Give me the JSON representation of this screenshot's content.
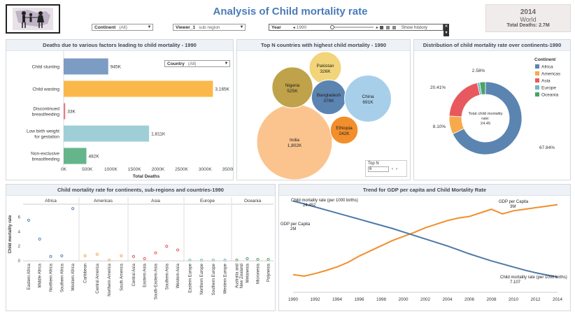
{
  "header": {
    "title": "Analysis of Child mortality rate",
    "kpi": {
      "year": "2014",
      "region": "World",
      "total": "Total Deaths: 2.7M"
    }
  },
  "filters": {
    "continent": {
      "label": "Continent",
      "value": "(All)"
    },
    "viewer": {
      "label": "Viewer_1",
      "value": "sub region"
    },
    "year": {
      "label": "Year",
      "value": "1990",
      "history": "Show history"
    },
    "country": {
      "label": "Country",
      "value": "(All)"
    },
    "topn": {
      "label": "Top N",
      "value": "6"
    }
  },
  "colors": {
    "africa": "#5b84b1",
    "americas": "#f8a94c",
    "asia": "#e7595e",
    "europe": "#6fb9c4",
    "oceania": "#4aa36a",
    "gdp": "#f28e2b",
    "cm": "#4e79a7"
  },
  "panels": {
    "deaths": {
      "title": "Deaths due to various factors leading to child mortality - 1990",
      "xlabel": "Total Deaths",
      "ticks": [
        "0K",
        "500K",
        "1000K",
        "1500K",
        "2000K",
        "2500K",
        "3000K",
        "3500K"
      ],
      "max": 3500,
      "bars": [
        {
          "label": "Child stunting",
          "value": 945,
          "text": "945K",
          "color": "#7c9cc4"
        },
        {
          "label": "Child wasting",
          "value": 3165,
          "text": "3,165K",
          "color": "#fbb84a"
        },
        {
          "label": "Discontinued breastfeeding",
          "value": 33,
          "text": "33K",
          "color": "#e97b82"
        },
        {
          "label": "Low birth weight for gestation",
          "value": 1811,
          "text": "1,811K",
          "color": "#9fcfd6"
        },
        {
          "label": "Non-exclusive breastfeeding",
          "value": 482,
          "text": "482K",
          "color": "#64b68a"
        }
      ]
    },
    "bubbles": {
      "title": "Top N countries with highest child mortality - 1990",
      "items": [
        {
          "name": "India",
          "value": "1,802K",
          "amount": 1802,
          "color": "#fbc48f"
        },
        {
          "name": "Nigeria",
          "value": "525K",
          "amount": 525,
          "color": "#bfa24a"
        },
        {
          "name": "Pakistan",
          "value": "326K",
          "amount": 326,
          "color": "#f2d57a"
        },
        {
          "name": "Bangladesh",
          "value": "376K",
          "amount": 376,
          "color": "#5b84b1"
        },
        {
          "name": "China",
          "value": "691K",
          "amount": 691,
          "color": "#a7cfea"
        },
        {
          "name": "Ethiopia",
          "value": "242K",
          "amount": 242,
          "color": "#f28e2b"
        }
      ]
    },
    "donut": {
      "title": "Distribution of child mortality rate over continents-1990",
      "legend_title": "Continent",
      "center": [
        "Total child mortality",
        "rate:",
        "24.45"
      ],
      "slices": [
        {
          "name": "Africa",
          "pct": 67.84,
          "label": "67.84%",
          "color": "#5b84b1"
        },
        {
          "name": "Americas",
          "pct": 8.1,
          "label": "8.10%",
          "color": "#f8a94c"
        },
        {
          "name": "Asia",
          "pct": 20.41,
          "label": "20.41%",
          "color": "#e7595e"
        },
        {
          "name": "Europe",
          "pct": 1.07,
          "label": "",
          "color": "#6fb9c4"
        },
        {
          "name": "Oceania",
          "pct": 2.58,
          "label": "2.58%",
          "color": "#4aa36a"
        }
      ]
    },
    "dots": {
      "title": "Child mortality rate for continents, sub-regions and countries-1990",
      "ylabel": "Child mortality rate",
      "yticks": [
        0,
        2,
        4,
        6
      ],
      "ymax": 7.8,
      "groups": [
        {
          "name": "Africa",
          "color": "#5b84b1",
          "items": [
            {
              "label": "Eastern Africa",
              "value": 5.6
            },
            {
              "label": "Middle Africa",
              "value": 3.0
            },
            {
              "label": "Northern Africa",
              "value": 0.6
            },
            {
              "label": "Southern Africa",
              "value": 0.7
            },
            {
              "label": "Western Africa",
              "value": 7.2
            }
          ]
        },
        {
          "name": "Americas",
          "color": "#f8a94c",
          "items": [
            {
              "label": "Caribbean",
              "value": 0.7
            },
            {
              "label": "Central America",
              "value": 0.9
            },
            {
              "label": "Northern America",
              "value": 0.1
            },
            {
              "label": "South America",
              "value": 0.7
            }
          ]
        },
        {
          "name": "Asia",
          "color": "#e7595e",
          "items": [
            {
              "label": "Central Asia",
              "value": 0.6
            },
            {
              "label": "Eastern Asia",
              "value": 0.3
            },
            {
              "label": "South-Eastern Asia",
              "value": 1.1
            },
            {
              "label": "Southern Asia",
              "value": 2.0
            },
            {
              "label": "Western Asia",
              "value": 1.5
            }
          ]
        },
        {
          "name": "Europe",
          "color": "#6fb9c4",
          "items": [
            {
              "label": "Eastern Europe",
              "value": 0.1
            },
            {
              "label": "Northern Europe",
              "value": 0.1
            },
            {
              "label": "Southern Europe",
              "value": 0.1
            },
            {
              "label": "Western Europe",
              "value": 0.1
            }
          ]
        },
        {
          "name": "Oceania",
          "color": "#4aa36a",
          "items": [
            {
              "label": "Australia and New Zealand",
              "value": 0.1
            },
            {
              "label": "Melanesia",
              "value": 0.3
            },
            {
              "label": "Micronesia",
              "value": 0.2
            },
            {
              "label": "Polynesia",
              "value": 0.2
            }
          ]
        }
      ]
    },
    "trend": {
      "title": "Trend for GDP per capita and Child Mortality Rate",
      "years": [
        "1990",
        "1992",
        "1994",
        "1996",
        "1998",
        "2000",
        "2002",
        "2004",
        "2006",
        "2008",
        "2010",
        "2012",
        "2014"
      ],
      "gdp_label_start": [
        "GDP per Capita",
        "2M"
      ],
      "gdp_label_end": [
        "GDP per Capita",
        "3M"
      ],
      "cm_label_start": [
        "Child mortality rate (per 1000 births)",
        "24.452"
      ],
      "cm_label_end": [
        "Child mortality rate (per 1000 births)",
        "7.107"
      ],
      "gdp": [
        2.0,
        1.97,
        2.02,
        2.08,
        2.15,
        2.24,
        2.36,
        2.46,
        2.56,
        2.66,
        2.74,
        2.82,
        2.91,
        2.98,
        3.05,
        3.1,
        3.13,
        3.2,
        3.27,
        3.18,
        3.24,
        3.27,
        3.3,
        3.33,
        3.36
      ],
      "cm": [
        24.452,
        23.8,
        23.1,
        22.4,
        21.7,
        21.0,
        20.3,
        19.6,
        18.9,
        18.2,
        17.4,
        16.6,
        15.8,
        15.0,
        14.2,
        13.3,
        12.4,
        11.6,
        10.8,
        10.1,
        9.4,
        8.7,
        8.1,
        7.6,
        7.107
      ]
    }
  }
}
